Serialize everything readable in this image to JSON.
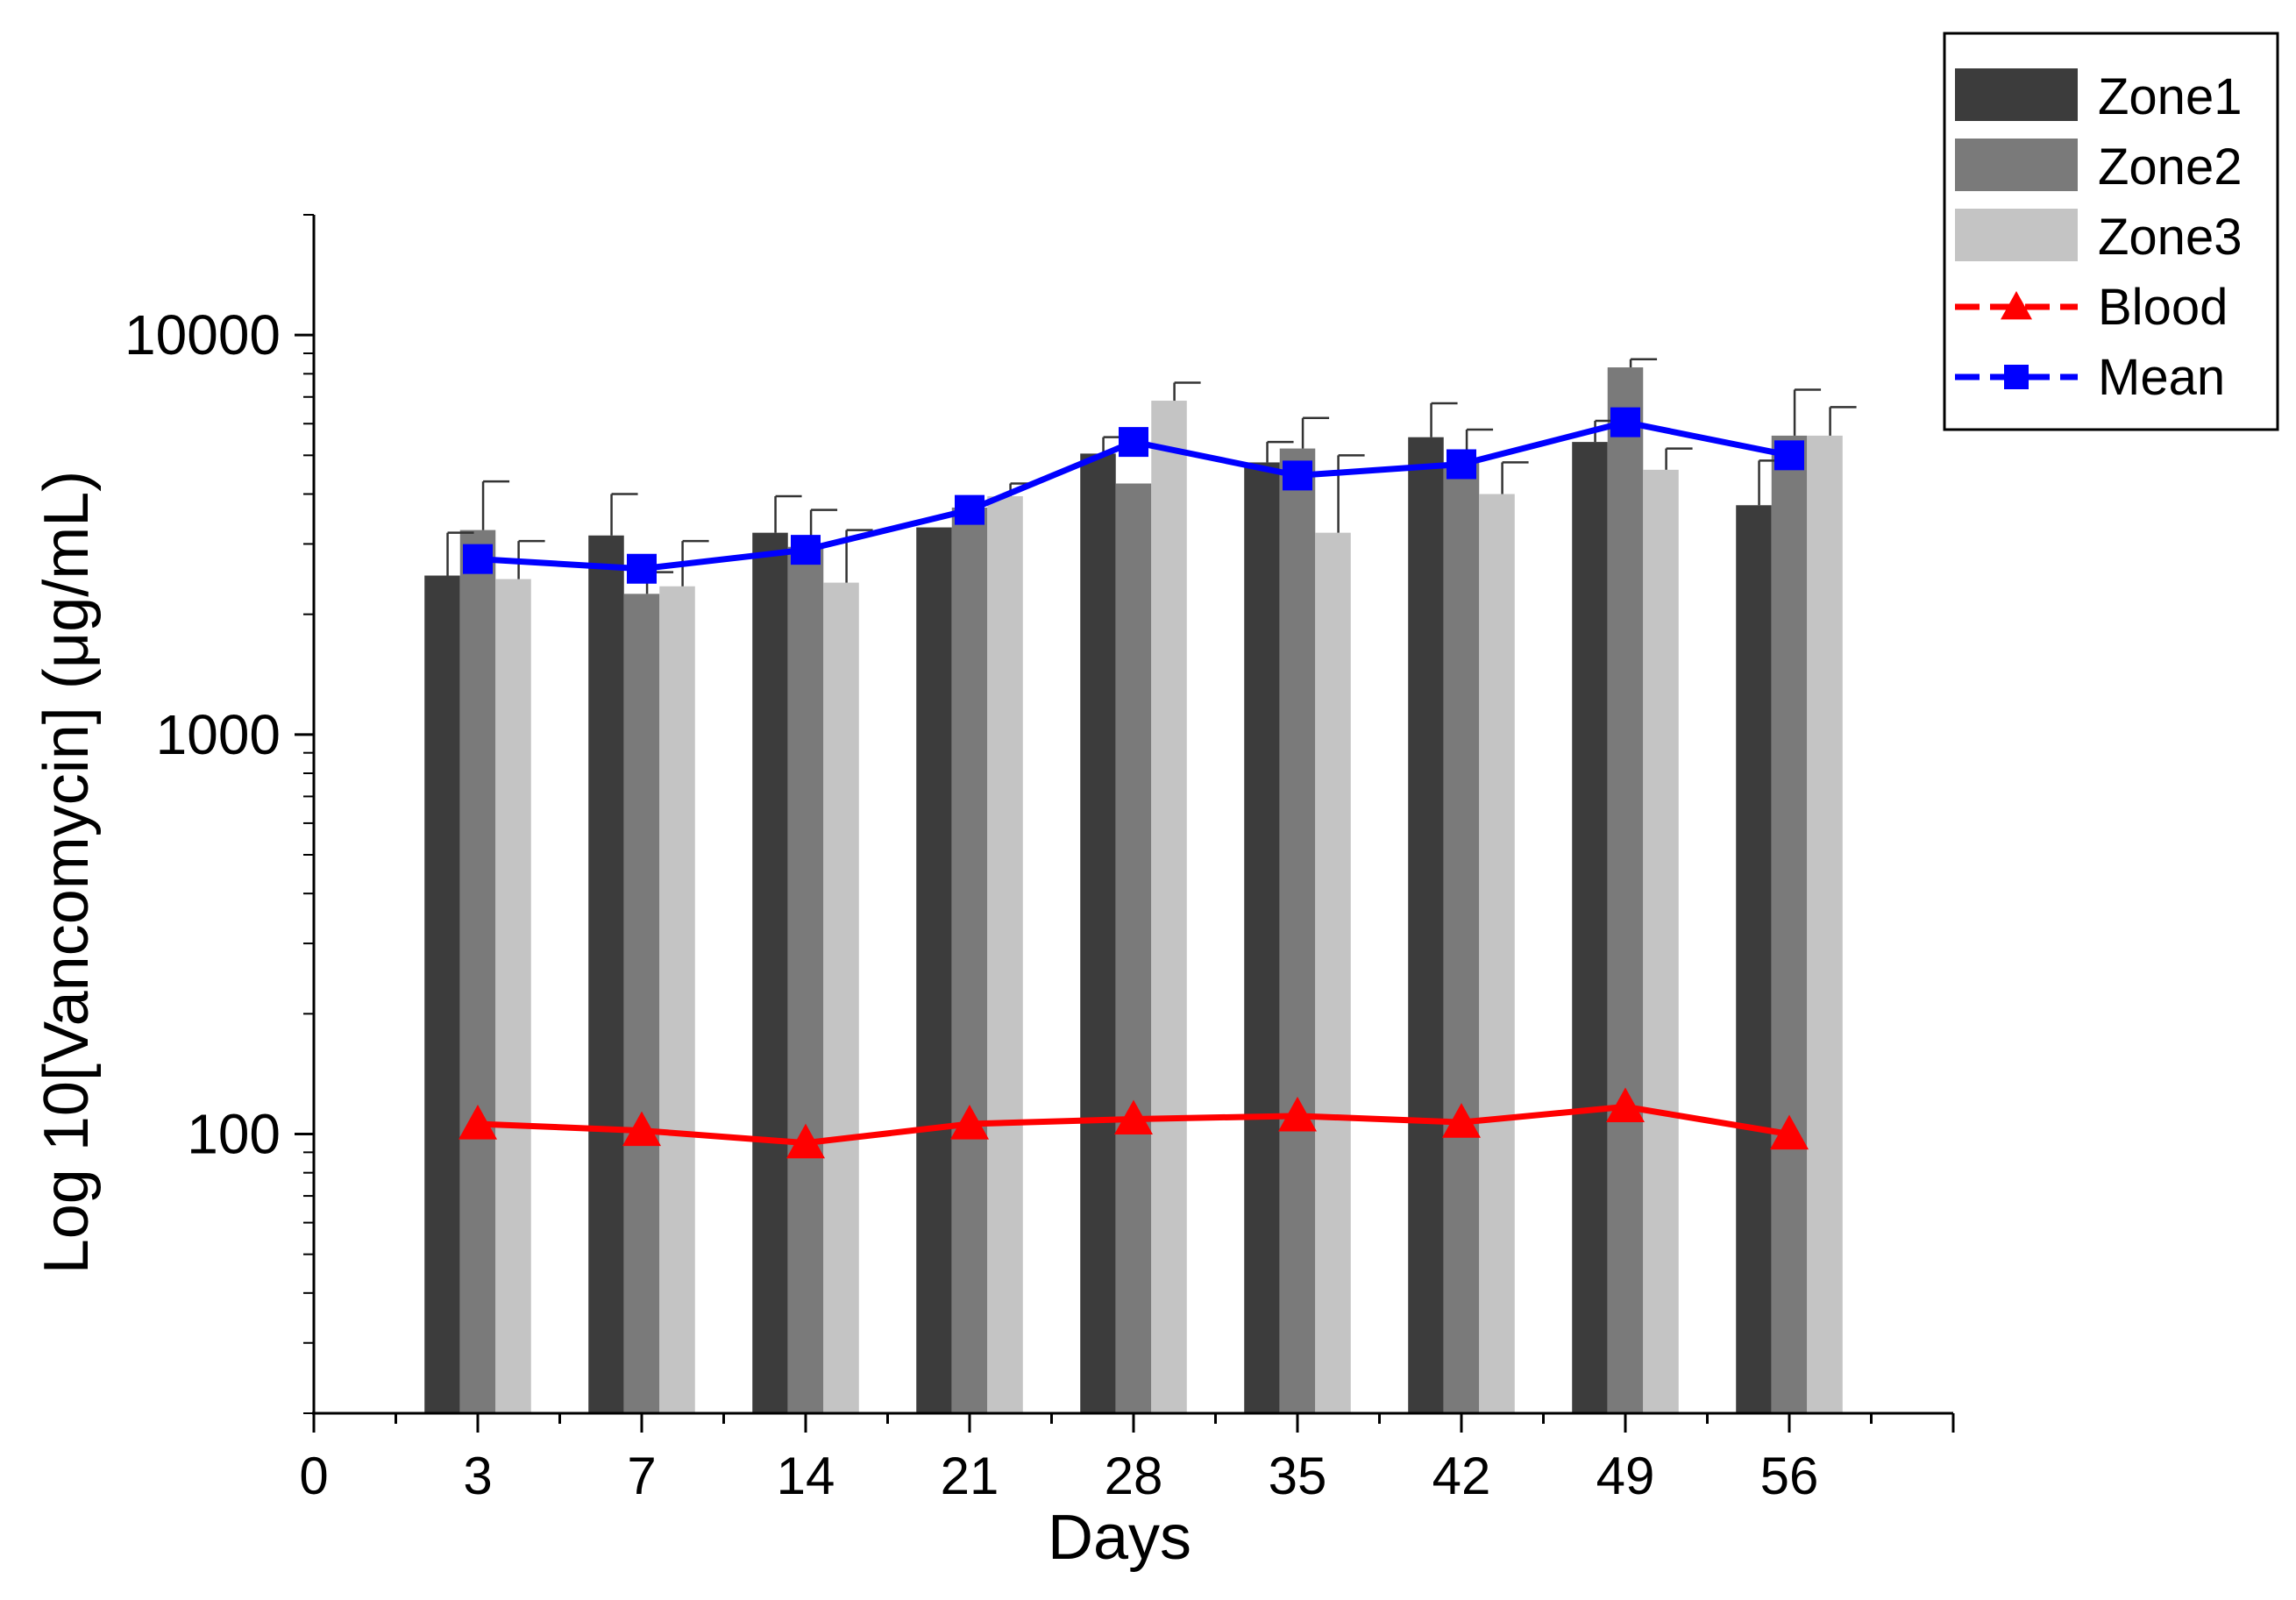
{
  "chart_data": {
    "type": "bar",
    "xlabel": "Days",
    "ylabel": "Log 10[Vancomycin] (μg/mL)",
    "yscale": "log",
    "ylim": [
      20,
      20000
    ],
    "xlim": [
      0,
      60
    ],
    "x_ticks": [
      "0",
      "3",
      "7",
      "14",
      "21",
      "28",
      "35",
      "42",
      "49",
      "56"
    ],
    "y_ticks": [
      "100",
      "1000",
      "10000"
    ],
    "categories": [
      "3",
      "7",
      "14",
      "21",
      "28",
      "35",
      "42",
      "49",
      "56"
    ],
    "bar_series": [
      {
        "name": "Zone1",
        "color": "#3c3c3c",
        "values": [
          2500,
          3150,
          3200,
          3300,
          5050,
          4800,
          5550,
          5400,
          3750
        ],
        "errors": [
          700,
          850,
          750,
          0,
          500,
          600,
          1200,
          700,
          1100
        ]
      },
      {
        "name": "Zone2",
        "color": "#7a7a7a",
        "values": [
          3250,
          2250,
          2950,
          3700,
          4250,
          5200,
          4800,
          8300,
          5600
        ],
        "errors": [
          1050,
          300,
          700,
          0,
          0,
          1000,
          1000,
          400,
          1700
        ]
      },
      {
        "name": "Zone3",
        "color": "#c4c4c4",
        "values": [
          2450,
          2350,
          2400,
          3950,
          6850,
          3200,
          4000,
          4600,
          5600
        ],
        "errors": [
          600,
          700,
          850,
          300,
          750,
          1800,
          800,
          600,
          1000
        ]
      }
    ],
    "line_series": [
      {
        "name": "Blood",
        "color": "#ff0000",
        "marker": "triangle",
        "values": [
          106,
          102,
          95,
          106,
          109,
          111,
          107,
          117,
          100
        ]
      },
      {
        "name": "Mean",
        "color": "#0000ff",
        "marker": "square",
        "values": [
          2750,
          2600,
          2900,
          3650,
          5400,
          4450,
          4750,
          6050,
          5000
        ]
      }
    ],
    "legend_position": "top-right"
  }
}
